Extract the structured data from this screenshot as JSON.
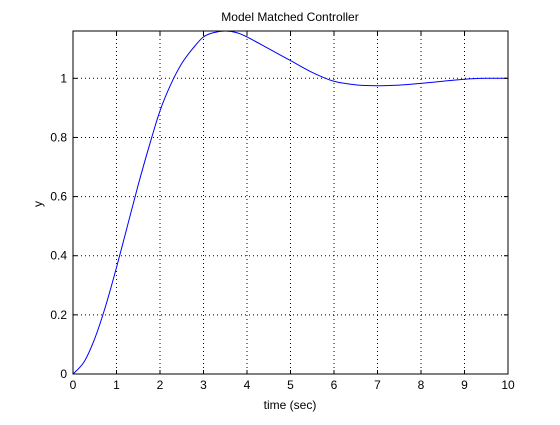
{
  "chart_data": {
    "type": "line",
    "title": "Model Matched Controller",
    "xlabel": "time (sec)",
    "ylabel": "y",
    "xlim": [
      0,
      10
    ],
    "ylim": [
      0,
      1.16
    ],
    "xticks": [
      0,
      1,
      2,
      3,
      4,
      5,
      6,
      7,
      8,
      9,
      10
    ],
    "yticks": [
      0,
      0.2,
      0.4,
      0.6,
      0.8,
      1
    ],
    "xtick_labels": [
      "0",
      "1",
      "2",
      "3",
      "4",
      "5",
      "6",
      "7",
      "8",
      "9",
      "10"
    ],
    "ytick_labels": [
      "0",
      "0.2",
      "0.4",
      "0.6",
      "0.8",
      "1"
    ],
    "grid": true,
    "grid_style": "dotted",
    "line_color": "#0000ff",
    "series": [
      {
        "x": [
          0,
          0.25,
          0.5,
          0.75,
          1.0,
          1.25,
          1.5,
          1.75,
          2.0,
          2.25,
          2.5,
          2.75,
          3.0,
          3.25,
          3.5,
          3.75,
          4.0,
          4.5,
          5.0,
          5.5,
          6.0,
          6.5,
          7.0,
          7.5,
          8.0,
          8.5,
          9.0,
          9.5,
          10.0
        ],
        "y": [
          0,
          0.04,
          0.12,
          0.23,
          0.36,
          0.5,
          0.64,
          0.77,
          0.89,
          0.98,
          1.05,
          1.1,
          1.14,
          1.155,
          1.16,
          1.155,
          1.14,
          1.1,
          1.06,
          1.02,
          0.99,
          0.978,
          0.975,
          0.977,
          0.983,
          0.99,
          0.997,
          1.0,
          1.0
        ]
      }
    ]
  }
}
